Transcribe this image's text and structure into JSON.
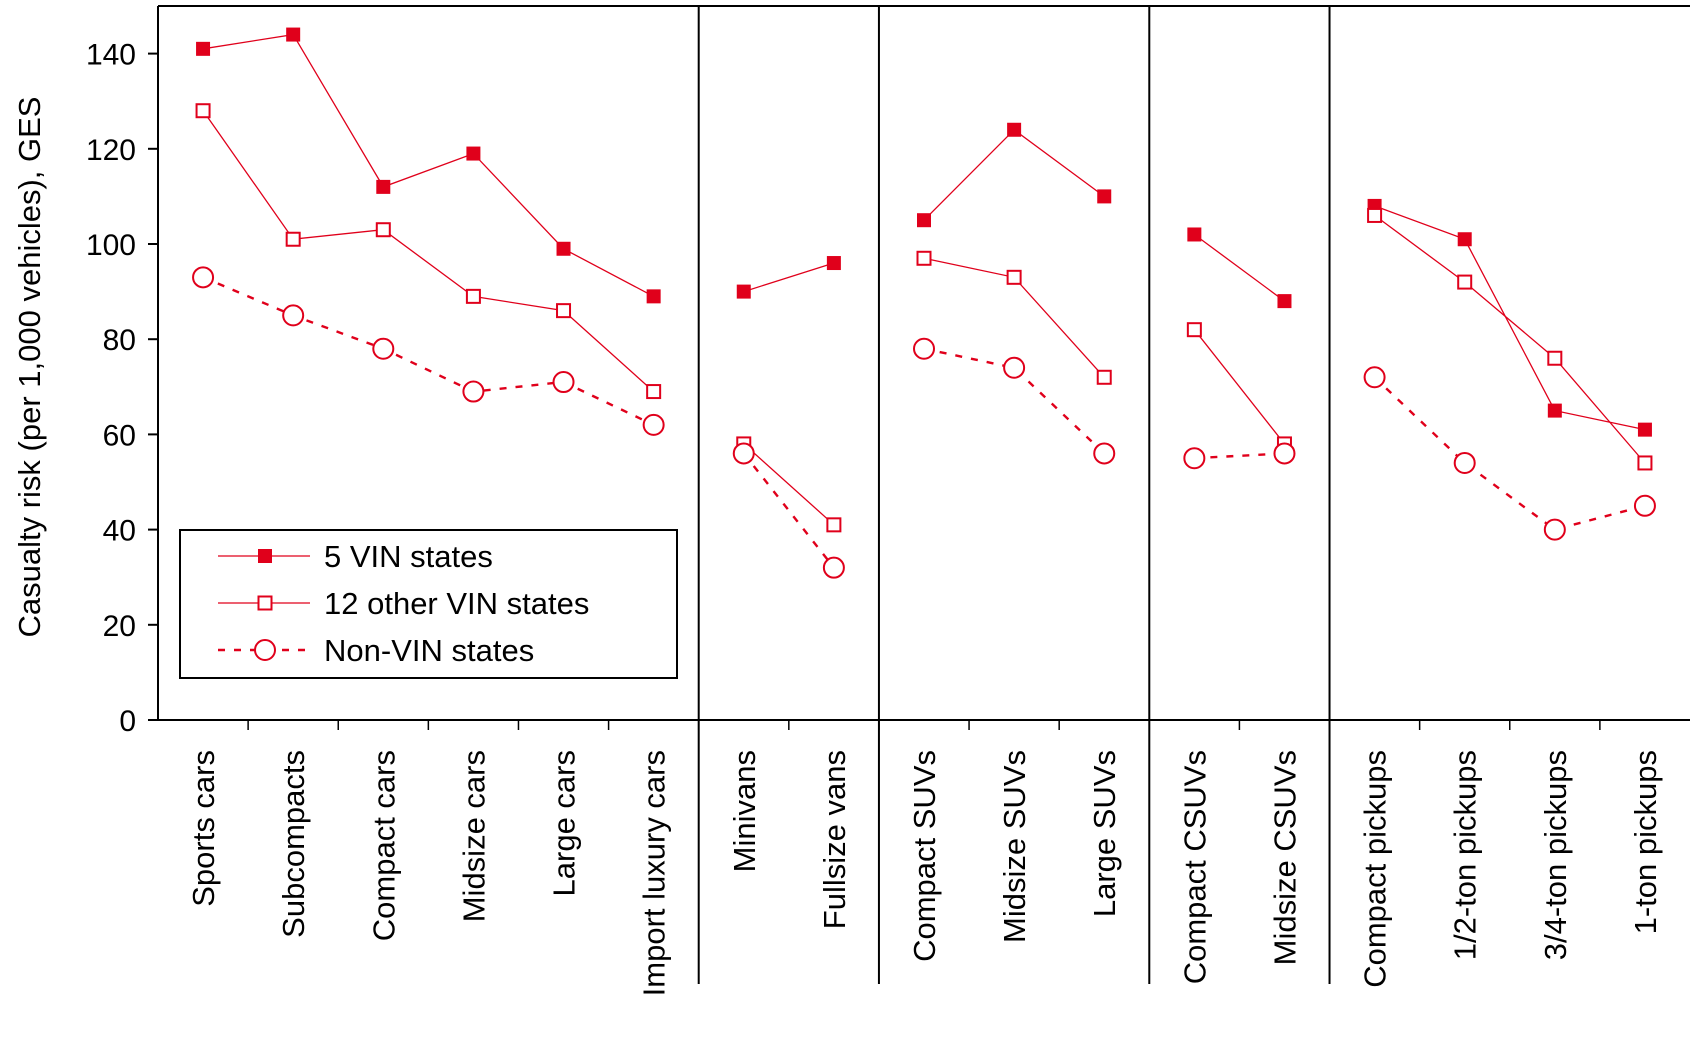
{
  "chart_data": {
    "type": "line",
    "title": "",
    "xlabel": "",
    "ylabel": "Casualty risk (per 1,000 vehicles), GES",
    "ylim": [
      0,
      150
    ],
    "yticks": [
      0,
      20,
      40,
      60,
      80,
      100,
      120,
      140
    ],
    "grid": false,
    "legend_position": "lower-left",
    "categories": [
      "Sports cars",
      "Subcompacts",
      "Compact cars",
      "Midsize cars",
      "Large cars",
      "Import luxury cars",
      "Minivans",
      "Fullsize vans",
      "Compact SUVs",
      "Midsize SUVs",
      "Large SUVs",
      "Compact CSUVs",
      "Midsize CSUVs",
      "Compact pickups",
      "1/2-ton pickups",
      "3/4-ton pickups",
      "1-ton pickups"
    ],
    "groups": [
      {
        "categories": [
          0,
          1,
          2,
          3,
          4,
          5
        ]
      },
      {
        "categories": [
          6,
          7
        ]
      },
      {
        "categories": [
          8,
          9,
          10
        ]
      },
      {
        "categories": [
          11,
          12
        ]
      },
      {
        "categories": [
          13,
          14,
          15,
          16
        ]
      }
    ],
    "series": [
      {
        "name": "5 VIN states",
        "marker": "filled-square",
        "line": "solid",
        "color": "#e0001b",
        "values": [
          141,
          144,
          112,
          119,
          99,
          89,
          90,
          96,
          105,
          124,
          110,
          102,
          88,
          108,
          101,
          65,
          61
        ]
      },
      {
        "name": "12 other VIN states",
        "marker": "open-square",
        "line": "solid",
        "color": "#e0001b",
        "values": [
          128,
          101,
          103,
          89,
          86,
          69,
          58,
          41,
          97,
          93,
          72,
          82,
          58,
          106,
          92,
          76,
          54
        ]
      },
      {
        "name": "Non-VIN states",
        "marker": "open-circle",
        "line": "dotted",
        "color": "#e0001b",
        "values": [
          93,
          85,
          78,
          69,
          71,
          62,
          56,
          32,
          78,
          74,
          56,
          55,
          56,
          72,
          54,
          40,
          45
        ]
      }
    ]
  }
}
